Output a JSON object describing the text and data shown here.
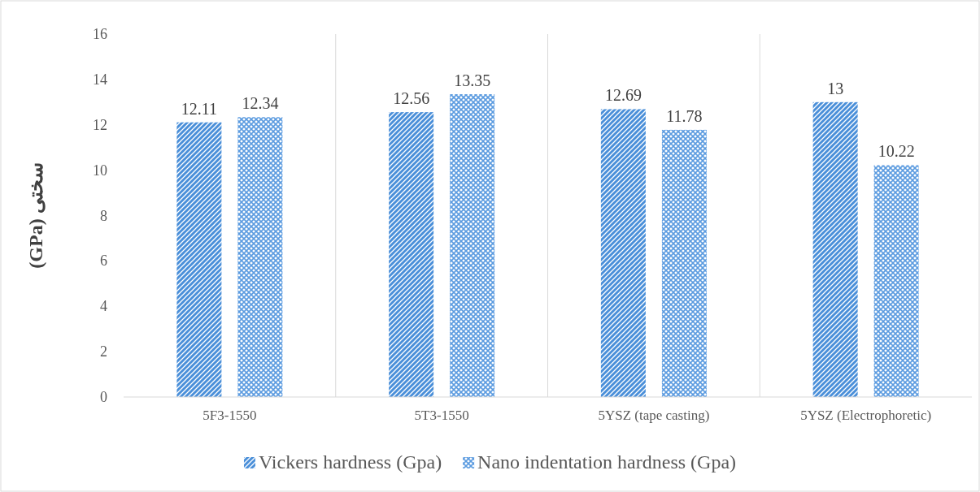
{
  "chart_data": {
    "type": "bar",
    "ylabel": "سختی (GPa)",
    "categories": [
      "5F3-1550",
      "5T3-1550",
      "5YSZ (tape casting)",
      "5YSZ (Electrophoretic)"
    ],
    "series": [
      {
        "name": "Vickers hardness (Gpa)",
        "color": "#4a8fd9",
        "values": [
          12.11,
          12.56,
          12.69,
          13
        ]
      },
      {
        "name": "Nano indentation hardness (Gpa)",
        "color": "#5b9be0",
        "values": [
          12.34,
          13.35,
          11.78,
          10.22
        ]
      }
    ],
    "ylim": [
      0,
      16
    ],
    "yticks": [
      0,
      2,
      4,
      6,
      8,
      10,
      12,
      14,
      16
    ],
    "grid": "x",
    "legend": "bottom",
    "data_labels": true
  }
}
